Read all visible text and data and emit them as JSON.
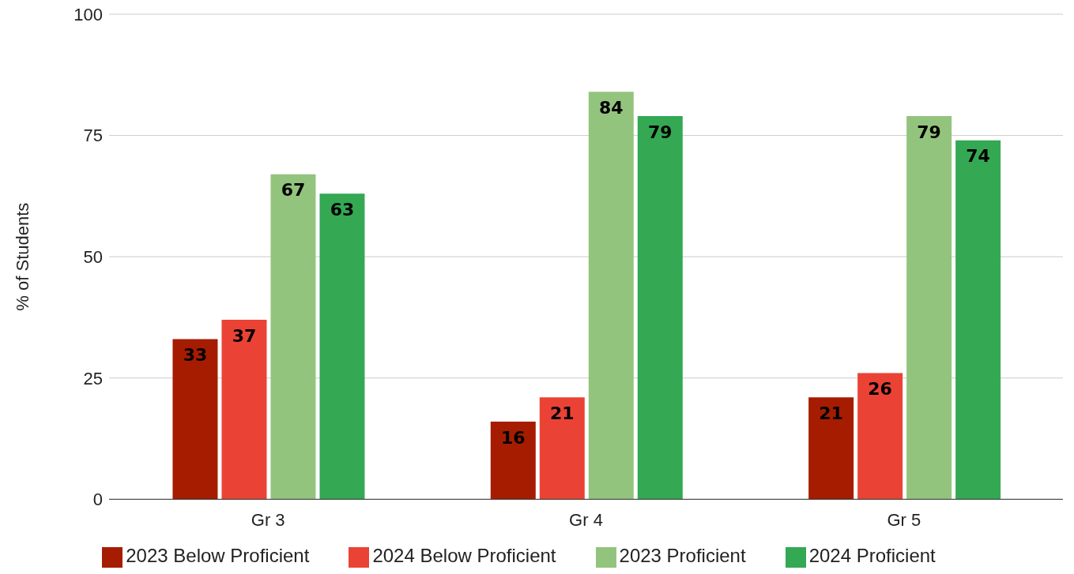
{
  "chart_data": {
    "type": "bar",
    "ylabel": "% of Students",
    "categories": [
      "Gr 3",
      "Gr 4",
      "Gr 5"
    ],
    "series": [
      {
        "name": "2023 Below Proficient",
        "color": "#a61c00",
        "values": [
          33,
          16,
          21
        ]
      },
      {
        "name": "2024 Below Proficient",
        "color": "#ea4335",
        "values": [
          37,
          21,
          26
        ]
      },
      {
        "name": "2023 Proficient",
        "color": "#93c47d",
        "values": [
          67,
          84,
          79
        ]
      },
      {
        "name": "2024 Proficient",
        "color": "#34a853",
        "values": [
          63,
          79,
          74
        ]
      }
    ],
    "ylim": [
      0,
      100
    ],
    "yticks": [
      0,
      25,
      50,
      75,
      100
    ],
    "grid": "y",
    "legend": "bottom",
    "data_labels": true
  }
}
